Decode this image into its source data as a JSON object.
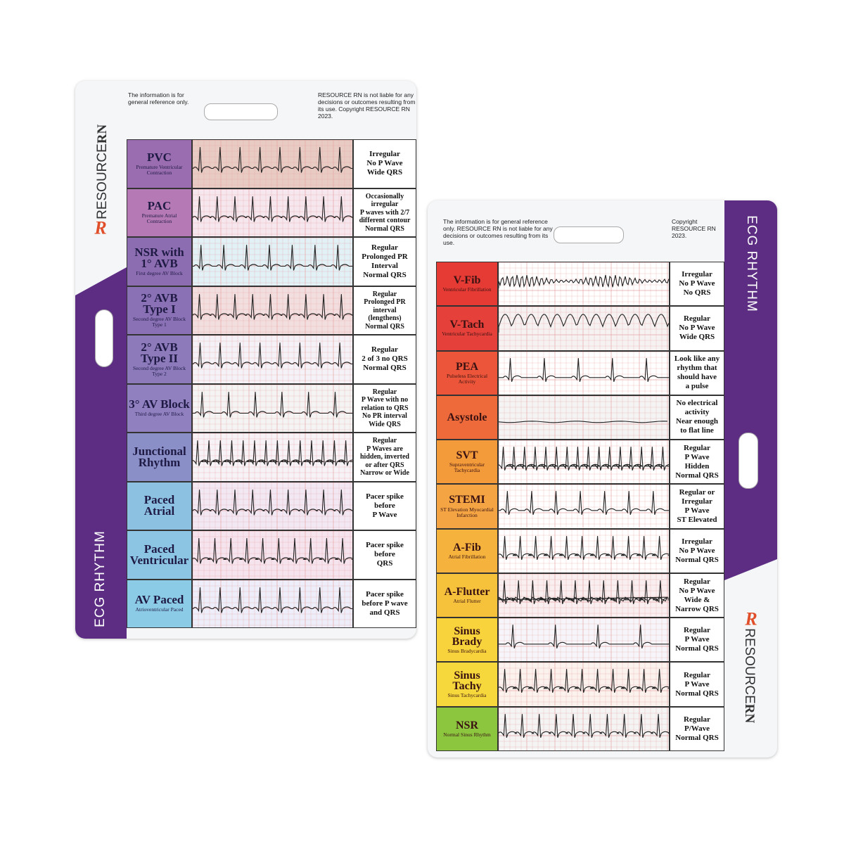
{
  "cards": [
    {
      "disclaimer_left": "The information is for general reference only.",
      "disclaimer_right": "RESOURCE RN is not liable for any decisions or outcomes resulting from its use. Copyright RESOURCE RN 2023.",
      "logo": "R",
      "brand_prefix": "RESOURCE",
      "brand_suffix": "RN",
      "side_label": "ECG RHYTHM",
      "rows": [
        {
          "name": "PVC",
          "subtitle": "Premature Ventricular Contraction",
          "description": [
            "Irregular",
            "No P Wave",
            "Wide QRS"
          ]
        },
        {
          "name": "PAC",
          "subtitle": "Premature Atrial Contraction",
          "description": [
            "Occasionally",
            "irregular",
            "P waves with 2/7",
            "different contour",
            "Normal QRS"
          ]
        },
        {
          "name": "NSR with 1° AVB",
          "subtitle": "First degree AV Block",
          "description": [
            "Regular",
            "Prolonged PR",
            "Interval",
            "Normal QRS"
          ]
        },
        {
          "name": "2° AVB Type I",
          "subtitle": "Second degree AV Block Type 1",
          "description": [
            "Regular",
            "Prolonged PR",
            "interval",
            "(lengthens)",
            "Normal QRS"
          ]
        },
        {
          "name": "2° AVB Type II",
          "subtitle": "Second degree AV Block Type 2",
          "description": [
            "Regular",
            "2 of 3 no QRS",
            "Normal QRS"
          ]
        },
        {
          "name": "3° AV Block",
          "subtitle": "Third degree AV Block",
          "description": [
            "Regular",
            "P Wave with no",
            "relation to QRS",
            "No PR interval",
            "Wide QRS"
          ]
        },
        {
          "name": "Junctional Rhythm",
          "description": [
            "Regular",
            "P Waves are",
            "hidden, inverted",
            "or after QRS",
            "Narrow or Wide"
          ]
        },
        {
          "name": "Paced Atrial",
          "description": [
            "Pacer spike",
            "before",
            "P Wave"
          ]
        },
        {
          "name": "Paced Ventricular",
          "description": [
            "Pacer spike",
            "before",
            "QRS"
          ]
        },
        {
          "name": "AV Paced",
          "subtitle": "Atrioventricular Paced",
          "description": [
            "Pacer spike",
            "before P wave",
            "and QRS"
          ]
        }
      ]
    },
    {
      "disclaimer_left": "The information is for general reference only. RESOURCE RN is not liable for any decisions or outcomes resulting from its use.",
      "disclaimer_right": "Copyright RESOURCE RN 2023.",
      "logo": "R",
      "brand_prefix": "RESOURCE",
      "brand_suffix": "RN",
      "side_label": "ECG RHYTHM",
      "rows": [
        {
          "name": "V-Fib",
          "subtitle": "Ventricular Fibrillation",
          "description": [
            "Irregular",
            "No P Wave",
            "No QRS"
          ]
        },
        {
          "name": "V-Tach",
          "subtitle": "Ventricular Tachycardia",
          "description": [
            "Regular",
            "No P Wave",
            "Wide QRS"
          ]
        },
        {
          "name": "PEA",
          "subtitle": "Pulseless Electrical Activity",
          "description": [
            "Look like any",
            "rhythm that",
            "should have",
            "a pulse"
          ]
        },
        {
          "name": "Asystole",
          "description": [
            "No electrical",
            "activity",
            "Near enough",
            "to flat line"
          ]
        },
        {
          "name": "SVT",
          "subtitle": "Supraventricular Tachycardia",
          "description": [
            "Regular",
            "P Wave",
            "Hidden",
            "Normal QRS"
          ]
        },
        {
          "name": "STEMI",
          "subtitle": "ST Elevation Myocardial Infarction",
          "description": [
            "Regular or",
            "Irregular",
            "P Wave",
            "ST Elevated"
          ]
        },
        {
          "name": "A-Fib",
          "subtitle": "Atrial Fibrillation",
          "description": [
            "Irregular",
            "No P Wave",
            "Normal QRS"
          ]
        },
        {
          "name": "A-Flutter",
          "subtitle": "Atrial Flutter",
          "description": [
            "Regular",
            "No P Wave",
            "Wide &",
            "Narrow QRS"
          ]
        },
        {
          "name": "Sinus Brady",
          "subtitle": "Sinus Bradycardia",
          "description": [
            "Regular",
            "P Wave",
            "Normal QRS"
          ]
        },
        {
          "name": "Sinus Tachy",
          "subtitle": "Sinus Tachycardia",
          "description": [
            "Regular",
            "P Wave",
            "Normal QRS"
          ]
        },
        {
          "name": "NSR",
          "subtitle": "Normal Sinus Rhythm",
          "description": [
            "Regular",
            "P/Wave",
            "Normal QRS"
          ]
        }
      ]
    }
  ]
}
